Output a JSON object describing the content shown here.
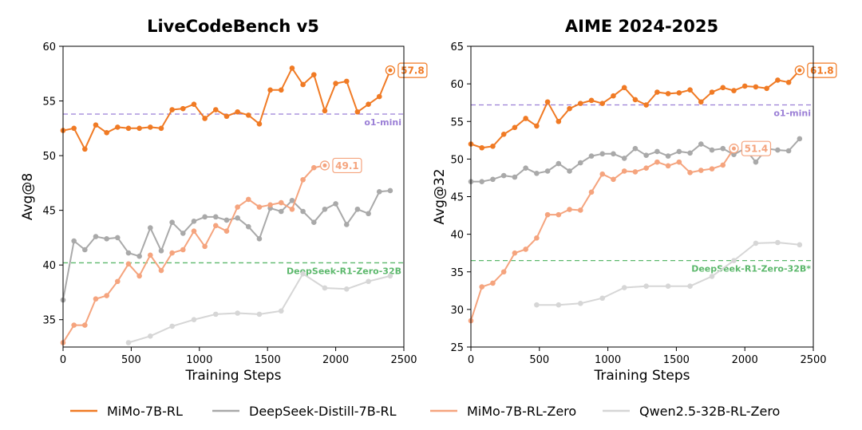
{
  "chart_data": [
    {
      "type": "line",
      "title": "LiveCodeBench v5",
      "xlabel": "Training Steps",
      "ylabel": "Avg@8",
      "xlim": [
        0,
        2500
      ],
      "ylim": [
        32.5,
        60
      ],
      "xticks": [
        0,
        500,
        1000,
        1500,
        2000,
        2500
      ],
      "yticks": [
        35,
        40,
        45,
        50,
        55,
        60
      ],
      "reference_lines": [
        {
          "label": "o1-mini",
          "y": 53.8,
          "color": "#9b7fd6"
        },
        {
          "label": "DeepSeek-R1-Zero-32B",
          "y": 40.2,
          "color": "#5cb86c"
        }
      ],
      "series": [
        {
          "name": "MiMo-7B-RL",
          "color": "#f07a24",
          "x": [
            0,
            80,
            160,
            240,
            320,
            400,
            480,
            560,
            640,
            720,
            800,
            880,
            960,
            1040,
            1120,
            1200,
            1280,
            1360,
            1440,
            1520,
            1600,
            1680,
            1760,
            1840,
            1920,
            2000,
            2080,
            2160,
            2240,
            2320,
            2400
          ],
          "y": [
            52.3,
            52.5,
            50.6,
            52.8,
            52.1,
            52.6,
            52.5,
            52.5,
            52.6,
            52.5,
            54.2,
            54.3,
            54.7,
            53.4,
            54.2,
            53.6,
            54.0,
            53.7,
            52.9,
            56.0,
            56.0,
            58.0,
            56.5,
            57.4,
            54.1,
            56.6,
            56.8,
            54.0,
            54.7,
            55.4,
            57.8
          ],
          "end_label": "57.8"
        },
        {
          "name": "DeepSeek-Distill-7B-RL",
          "color": "#a9a9a9",
          "x": [
            0,
            80,
            160,
            240,
            320,
            400,
            480,
            560,
            640,
            720,
            800,
            880,
            960,
            1040,
            1120,
            1200,
            1280,
            1360,
            1440,
            1520,
            1600,
            1680,
            1760,
            1840,
            1920,
            2000,
            2080,
            2160,
            2240,
            2320,
            2400
          ],
          "y": [
            36.8,
            42.2,
            41.4,
            42.6,
            42.4,
            42.5,
            41.1,
            40.8,
            43.4,
            41.3,
            43.9,
            42.9,
            44.0,
            44.4,
            44.4,
            44.1,
            44.3,
            43.5,
            42.4,
            45.2,
            44.9,
            45.9,
            44.9,
            43.9,
            45.1,
            45.6,
            43.7,
            45.1,
            44.7,
            46.7,
            46.8
          ]
        },
        {
          "name": "MiMo-7B-RL-Zero",
          "color": "#f5a47e",
          "x": [
            0,
            80,
            160,
            240,
            320,
            400,
            480,
            560,
            640,
            720,
            800,
            880,
            960,
            1040,
            1120,
            1200,
            1280,
            1360,
            1440,
            1520,
            1600,
            1680,
            1760,
            1840,
            1920
          ],
          "y": [
            32.9,
            34.5,
            34.5,
            36.9,
            37.2,
            38.5,
            40.1,
            39.0,
            40.9,
            39.5,
            41.1,
            41.4,
            43.1,
            41.7,
            43.6,
            43.1,
            45.3,
            46.0,
            45.3,
            45.5,
            45.7,
            45.1,
            47.8,
            48.9,
            49.1
          ],
          "end_label": "49.1"
        },
        {
          "name": "Qwen2.5-32B-RL-Zero",
          "color": "#d6d6d6",
          "x": [
            480,
            640,
            800,
            960,
            1120,
            1280,
            1440,
            1600,
            1760,
            1920,
            2080,
            2240,
            2400
          ],
          "y": [
            32.9,
            33.5,
            34.4,
            35.0,
            35.5,
            35.6,
            35.5,
            35.8,
            39.2,
            37.9,
            37.8,
            38.5,
            39.0
          ]
        }
      ]
    },
    {
      "type": "line",
      "title": "AIME 2024-2025",
      "xlabel": "Training Steps",
      "ylabel": "Avg@32",
      "xlim": [
        0,
        2500
      ],
      "ylim": [
        25,
        65
      ],
      "xticks": [
        0,
        500,
        1000,
        1500,
        2000,
        2500
      ],
      "yticks": [
        25,
        30,
        35,
        40,
        45,
        50,
        55,
        60,
        65
      ],
      "reference_lines": [
        {
          "label": "o1-mini",
          "y": 57.2,
          "color": "#9b7fd6"
        },
        {
          "label": "DeepSeek-R1-Zero-32B*",
          "y": 36.5,
          "color": "#5cb86c"
        }
      ],
      "series": [
        {
          "name": "MiMo-7B-RL",
          "color": "#f07a24",
          "x": [
            0,
            80,
            160,
            240,
            320,
            400,
            480,
            560,
            640,
            720,
            800,
            880,
            960,
            1040,
            1120,
            1200,
            1280,
            1360,
            1440,
            1520,
            1600,
            1680,
            1760,
            1840,
            1920,
            2000,
            2080,
            2160,
            2240,
            2320,
            2400
          ],
          "y": [
            52.0,
            51.5,
            51.7,
            53.3,
            54.2,
            55.4,
            54.4,
            57.6,
            55.0,
            56.7,
            57.4,
            57.8,
            57.4,
            58.4,
            59.5,
            57.9,
            57.2,
            58.9,
            58.7,
            58.8,
            59.2,
            57.6,
            58.9,
            59.5,
            59.1,
            59.7,
            59.6,
            59.4,
            60.5,
            60.2,
            61.8
          ],
          "end_label": "61.8"
        },
        {
          "name": "DeepSeek-Distill-7B-RL",
          "color": "#a9a9a9",
          "x": [
            0,
            80,
            160,
            240,
            320,
            400,
            480,
            560,
            640,
            720,
            800,
            880,
            960,
            1040,
            1120,
            1200,
            1280,
            1360,
            1440,
            1520,
            1600,
            1680,
            1760,
            1840,
            1920,
            2000,
            2080,
            2160,
            2240,
            2320,
            2400
          ],
          "y": [
            47.0,
            47.0,
            47.3,
            47.8,
            47.6,
            48.8,
            48.1,
            48.4,
            49.4,
            48.4,
            49.5,
            50.4,
            50.7,
            50.7,
            50.1,
            51.4,
            50.5,
            51.0,
            50.4,
            51.0,
            50.8,
            52.0,
            51.2,
            51.4,
            50.6,
            51.4,
            49.6,
            51.4,
            51.2,
            51.1,
            52.7
          ]
        },
        {
          "name": "MiMo-7B-RL-Zero",
          "color": "#f5a47e",
          "x": [
            0,
            80,
            160,
            240,
            320,
            400,
            480,
            560,
            640,
            720,
            800,
            880,
            960,
            1040,
            1120,
            1200,
            1280,
            1360,
            1440,
            1520,
            1600,
            1680,
            1760,
            1840,
            1920
          ],
          "y": [
            28.5,
            33.0,
            33.5,
            35.0,
            37.5,
            38.0,
            39.5,
            42.6,
            42.6,
            43.3,
            43.2,
            45.6,
            48.0,
            47.3,
            48.4,
            48.3,
            48.8,
            49.6,
            49.1,
            49.6,
            48.2,
            48.5,
            48.7,
            49.2,
            51.4
          ],
          "end_label": "51.4"
        },
        {
          "name": "Qwen2.5-32B-RL-Zero",
          "color": "#d6d6d6",
          "x": [
            480,
            640,
            800,
            960,
            1120,
            1280,
            1440,
            1600,
            1760,
            1920,
            2080,
            2240,
            2400
          ],
          "y": [
            30.6,
            30.6,
            30.8,
            31.5,
            32.9,
            33.1,
            33.1,
            33.1,
            34.4,
            36.5,
            38.8,
            38.9,
            38.6
          ]
        }
      ]
    }
  ],
  "legend": [
    {
      "label": "MiMo-7B-RL",
      "color": "#f07a24"
    },
    {
      "label": "DeepSeek-Distill-7B-RL",
      "color": "#a9a9a9"
    },
    {
      "label": "MiMo-7B-RL-Zero",
      "color": "#f5a47e"
    },
    {
      "label": "Qwen2.5-32B-RL-Zero",
      "color": "#d6d6d6"
    }
  ]
}
